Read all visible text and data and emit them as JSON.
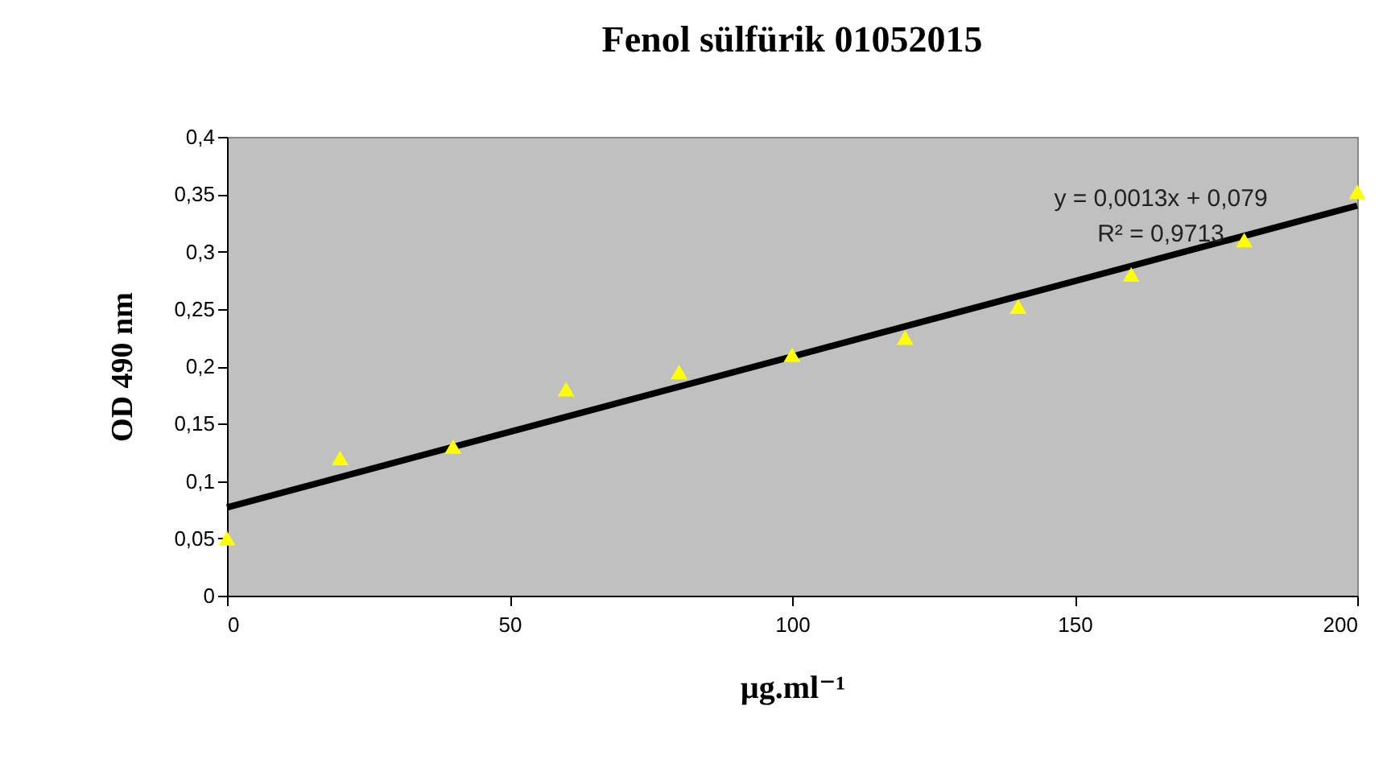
{
  "chart_data": {
    "type": "scatter",
    "title": "Fenol sülfürik 01052015",
    "xlabel": "µg.ml⁻¹",
    "ylabel": "OD 490 nm",
    "annotations": [
      "y = 0,0013x + 0,079",
      "R² = 0,9713"
    ],
    "xlim": [
      0,
      200
    ],
    "xticks": [
      0,
      50,
      100,
      150,
      200
    ],
    "ylim": [
      0,
      0.4
    ],
    "yticks": [
      0,
      {
        "value": 0.05,
        "label": "0,05"
      },
      {
        "value": 0.1,
        "label": "0,1"
      },
      {
        "value": 0.15,
        "label": "0,15"
      },
      {
        "value": 0.2,
        "label": "0,2"
      },
      {
        "value": 0.25,
        "label": "0,25"
      },
      {
        "value": 0.3,
        "label": "0,3"
      },
      {
        "value": 0.35,
        "label": "0,35"
      },
      {
        "value": 0.4,
        "label": "0,4"
      }
    ],
    "grid": false,
    "series": [
      {
        "type": "scatter",
        "marker": "triangle",
        "color": "#ffff00",
        "x": [
          0,
          20,
          40,
          60,
          80,
          100,
          120,
          140,
          160,
          180,
          200
        ],
        "values": [
          0.05,
          0.12,
          0.13,
          0.18,
          0.195,
          0.21,
          0.225,
          0.252,
          0.28,
          0.31,
          0.352
        ]
      },
      {
        "type": "line",
        "marker": "none",
        "line_style": "solid",
        "color": "#000000",
        "x": [
          0,
          200
        ],
        "values": [
          0.077,
          0.34
        ]
      }
    ]
  }
}
